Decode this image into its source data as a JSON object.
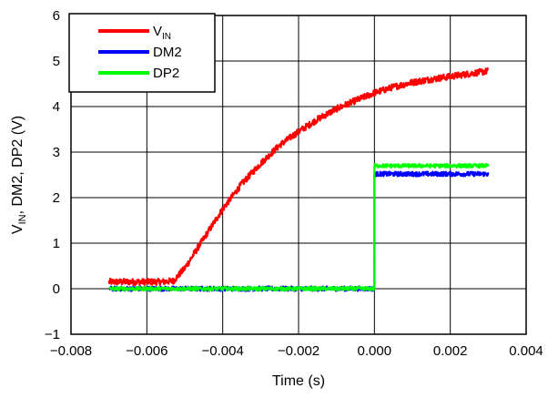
{
  "chart_data": {
    "type": "line",
    "xlabel": "Time (s)",
    "ylabel_parts": [
      "V",
      "IN",
      ", DM2, DP2 (V)"
    ],
    "xlim": [
      -0.008,
      0.004
    ],
    "ylim": [
      -1,
      6
    ],
    "xticks": [
      -0.008,
      -0.006,
      -0.004,
      -0.002,
      0.0,
      0.002,
      0.004
    ],
    "xtick_labels": [
      "−0.008",
      "−0.006",
      "−0.004",
      "−0.002",
      "0.000",
      "0.002",
      "0.004"
    ],
    "yticks": [
      -1,
      0,
      1,
      2,
      3,
      4,
      5,
      6
    ],
    "ytick_labels": [
      "−1",
      "0",
      "1",
      "2",
      "3",
      "4",
      "5",
      "6"
    ],
    "grid": true,
    "legend_position": "top-left",
    "series": [
      {
        "name": "VIN",
        "legend_parts": [
          "V",
          "IN"
        ],
        "color": "#ff0000",
        "noise": 0.07,
        "x": [
          -0.007,
          -0.0062,
          -0.0056,
          -0.0053,
          -0.005,
          -0.0045,
          -0.004,
          -0.0035,
          -0.003,
          -0.0025,
          -0.002,
          -0.0015,
          -0.001,
          -0.0005,
          0.0,
          0.0005,
          0.001,
          0.0015,
          0.002,
          0.0025,
          0.003
        ],
        "y": [
          0.15,
          0.15,
          0.15,
          0.17,
          0.45,
          1.1,
          1.75,
          2.3,
          2.75,
          3.15,
          3.45,
          3.72,
          3.95,
          4.13,
          4.3,
          4.43,
          4.53,
          4.6,
          4.66,
          4.72,
          4.78
        ]
      },
      {
        "name": "DM2",
        "legend_parts": [
          "DM2"
        ],
        "color": "#0000ff",
        "noise": 0.05,
        "x": [
          -0.007,
          -2e-05,
          -5e-06,
          0.0,
          0.003
        ],
        "y": [
          0.0,
          0.0,
          0.0,
          2.52,
          2.52
        ]
      },
      {
        "name": "DP2",
        "legend_parts": [
          "DP2"
        ],
        "color": "#00ff00",
        "noise": 0.04,
        "x": [
          -0.007,
          -2e-05,
          -5e-06,
          0.0,
          0.003
        ],
        "y": [
          0.0,
          0.0,
          0.0,
          2.7,
          2.7
        ]
      }
    ]
  }
}
